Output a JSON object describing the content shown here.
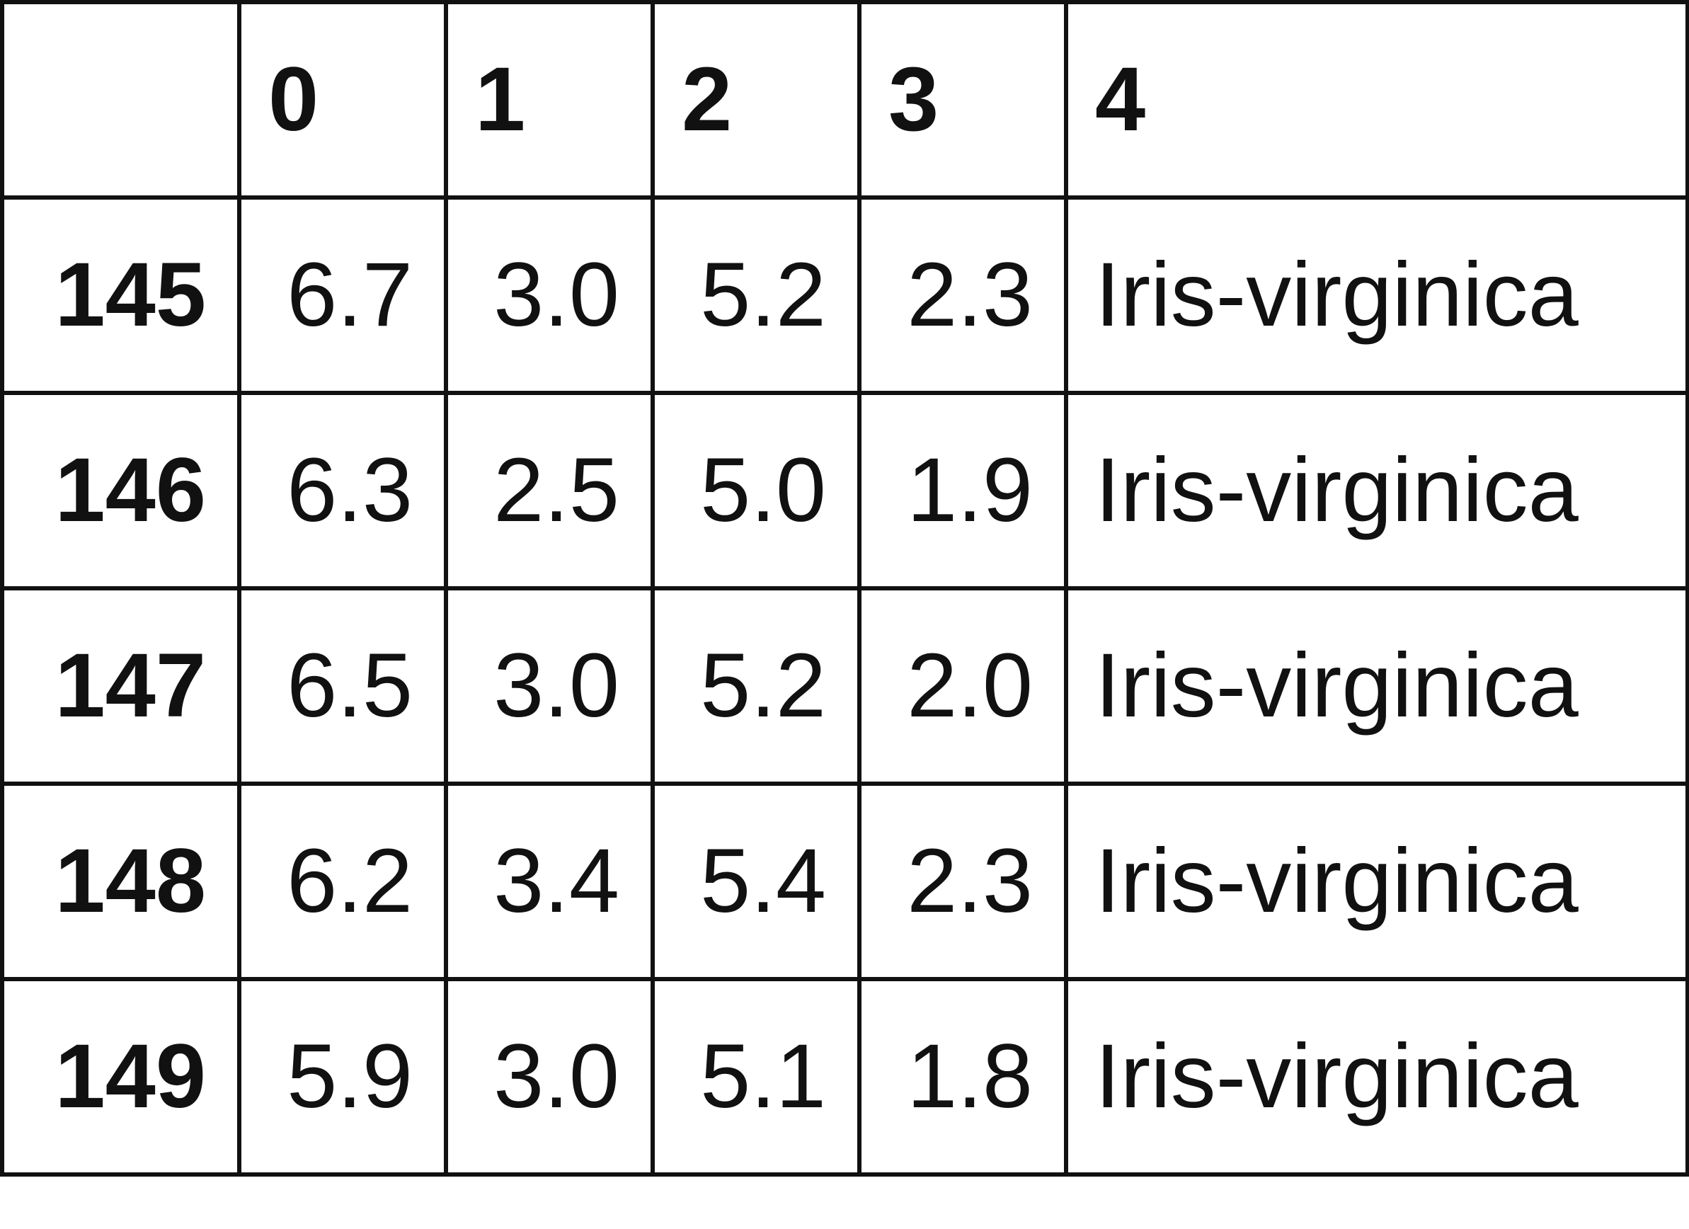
{
  "table": {
    "header": [
      "",
      "0",
      "1",
      "2",
      "3",
      "4"
    ],
    "rows": [
      {
        "index": "145",
        "values": [
          "6.7",
          "3.0",
          "5.2",
          "2.3",
          "Iris-virginica"
        ]
      },
      {
        "index": "146",
        "values": [
          "6.3",
          "2.5",
          "5.0",
          "1.9",
          "Iris-virginica"
        ]
      },
      {
        "index": "147",
        "values": [
          "6.5",
          "3.0",
          "5.2",
          "2.0",
          "Iris-virginica"
        ]
      },
      {
        "index": "148",
        "values": [
          "6.2",
          "3.4",
          "5.4",
          "2.3",
          "Iris-virginica"
        ]
      },
      {
        "index": "149",
        "values": [
          "5.9",
          "3.0",
          "5.1",
          "1.8",
          "Iris-virginica"
        ]
      }
    ]
  },
  "colors": {
    "border": "#111111",
    "text": "#111111",
    "background": "#ffffff"
  }
}
